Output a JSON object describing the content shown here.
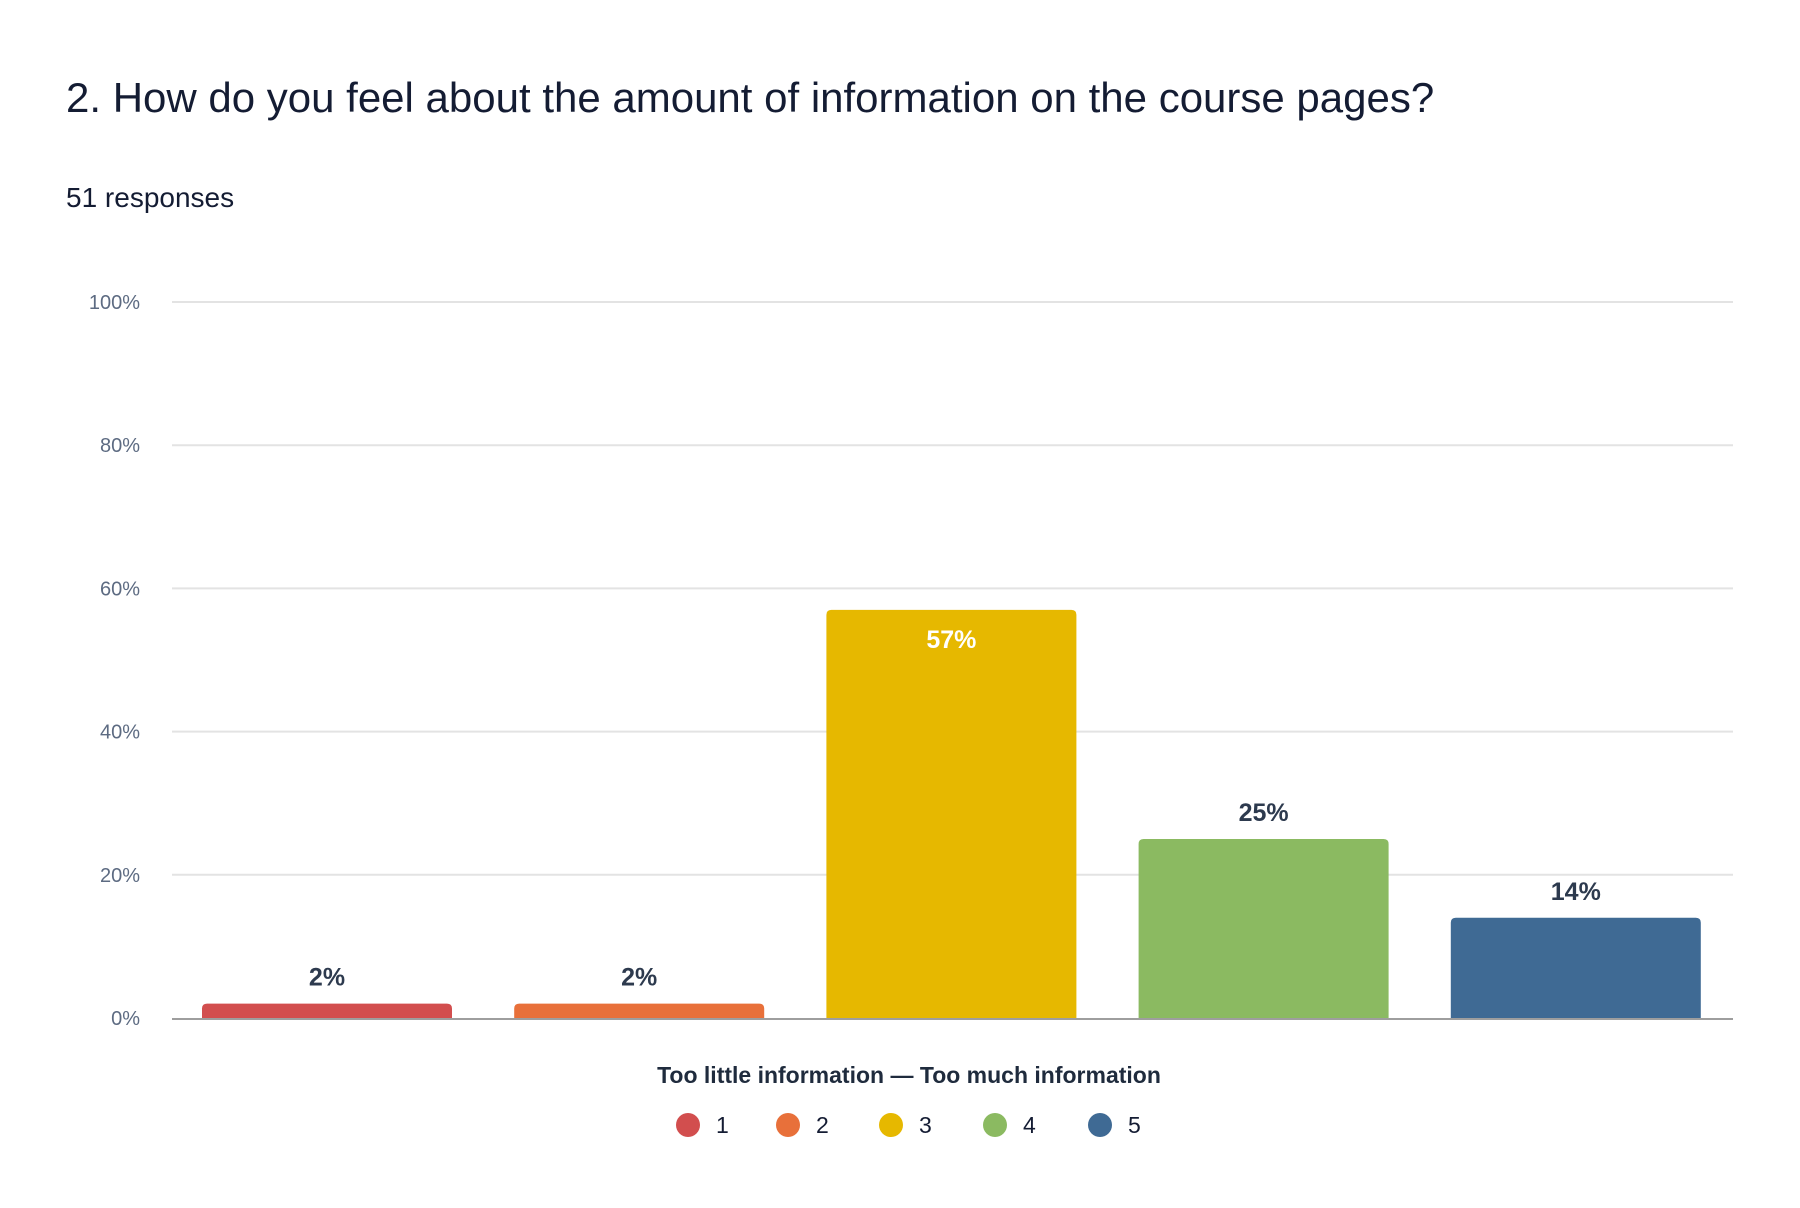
{
  "question_title": "2. How do you feel about the amount of information on the course pages?",
  "responses_label": "51 responses",
  "chart_data": {
    "type": "bar",
    "title": "2. How do you feel about the amount of information on the course pages?",
    "xlabel": "Too little information — Too much information",
    "ylabel": "",
    "categories": [
      "1",
      "2",
      "3",
      "4",
      "5"
    ],
    "values": [
      2,
      2,
      57,
      25,
      14
    ],
    "value_labels": [
      "2%",
      "2%",
      "57%",
      "25%",
      "14%"
    ],
    "colors": [
      "#d24e4e",
      "#e8703a",
      "#e6b800",
      "#8bba61",
      "#3f6a94"
    ],
    "ylim": [
      0,
      100
    ],
    "yticks": [
      0,
      20,
      40,
      60,
      80,
      100
    ],
    "ytick_labels": [
      "0%",
      "20%",
      "40%",
      "60%",
      "80%",
      "100%"
    ],
    "grid": true,
    "legend": {
      "placement": "bottom-center",
      "entries": [
        "1",
        "2",
        "3",
        "4",
        "5"
      ]
    }
  }
}
